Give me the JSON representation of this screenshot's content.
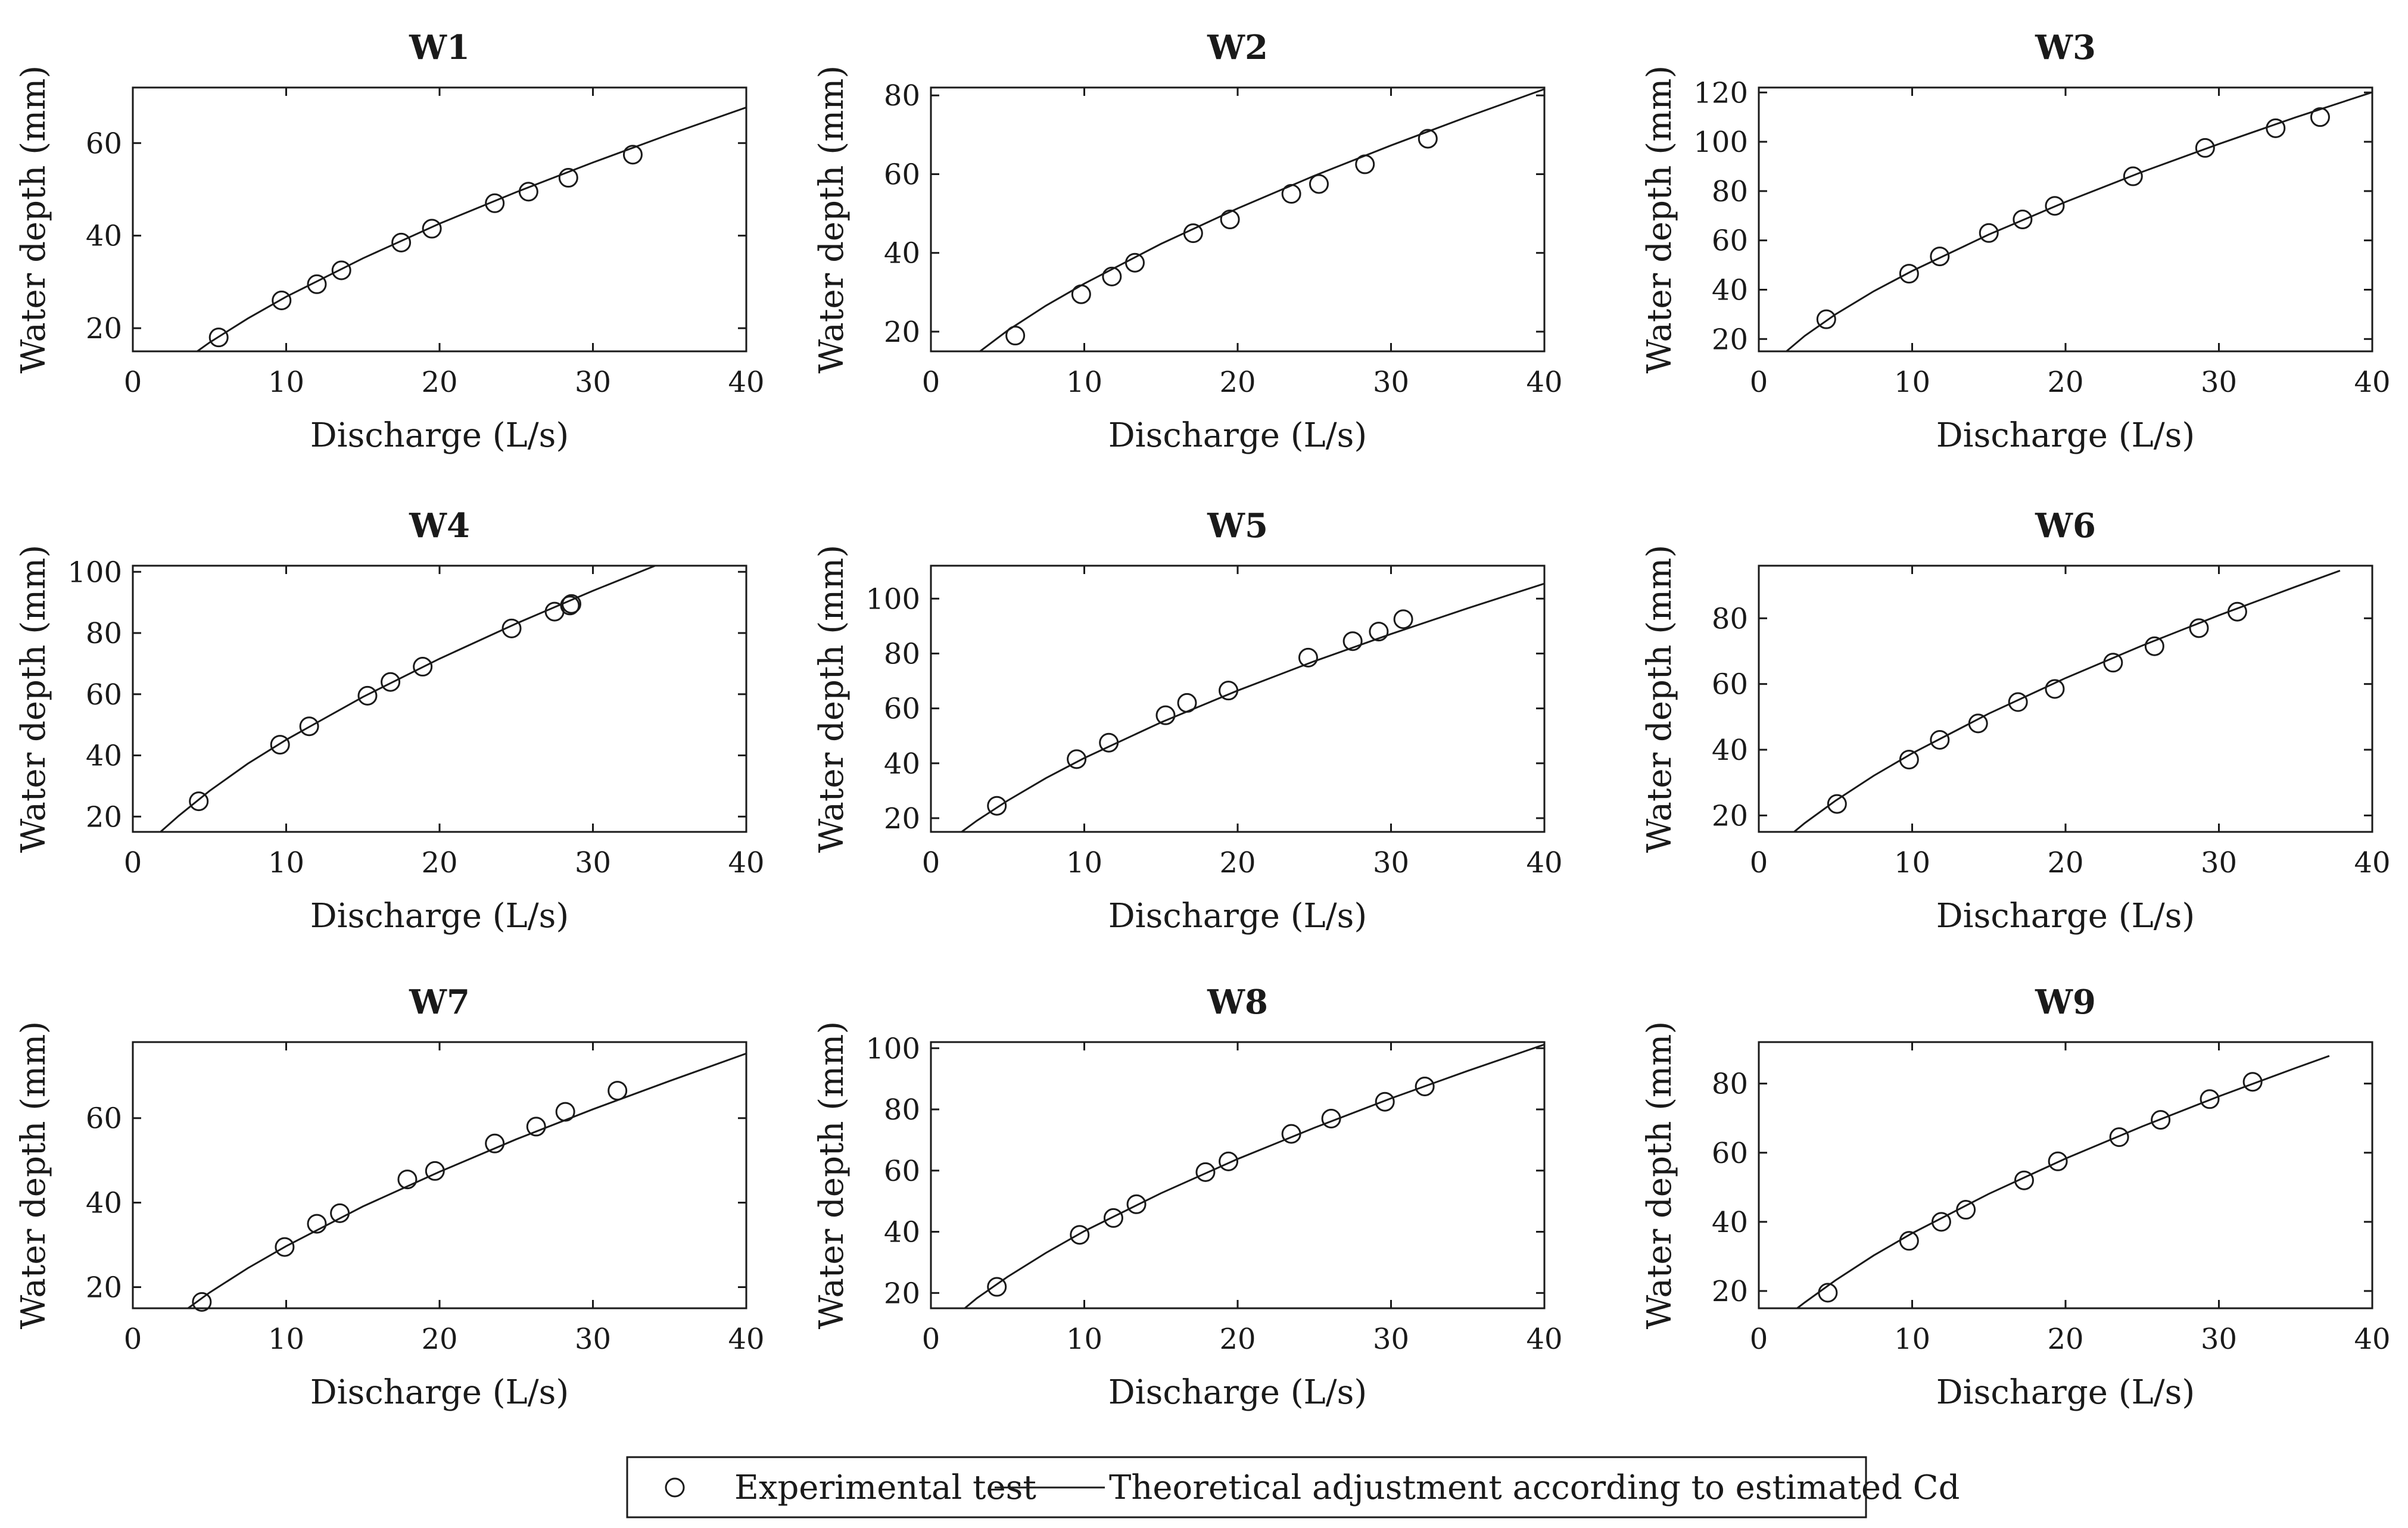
{
  "figure": {
    "legend": {
      "marker_label": "Experimental test",
      "line_label": "Theoretical adjustment according to estimated Cd",
      "placement": "bottom-center"
    },
    "colors": {
      "ink": "#1a1a1a",
      "background": "#ffffff"
    }
  },
  "chart_data": [
    {
      "type": "scatter",
      "title": "W1",
      "xlabel": "Discharge (L/s)",
      "ylabel": "Water depth (mm)",
      "xlim": [
        0,
        40
      ],
      "ylim": [
        15,
        72
      ],
      "xticks": [
        0,
        10,
        20,
        30,
        40
      ],
      "yticks": [
        20,
        40,
        60
      ],
      "grid": false,
      "series": [
        {
          "name": "Experimental test",
          "x": [
            5.6,
            9.7,
            12.0,
            13.6,
            17.5,
            19.5,
            23.6,
            25.8,
            28.4,
            32.6
          ],
          "y": [
            18,
            26,
            29.5,
            32.5,
            38.5,
            41.5,
            47,
            49.5,
            52.5,
            57.5
          ]
        },
        {
          "name": "Theoretical adjustment according to estimated Cd",
          "x": [
            4.2,
            5,
            7.5,
            10,
            15,
            20,
            25,
            30,
            35,
            40
          ],
          "y": [
            15,
            16.9,
            22.1,
            26.8,
            35.1,
            42.6,
            49.4,
            55.8,
            61.9,
            67.7
          ]
        }
      ]
    },
    {
      "type": "scatter",
      "title": "W2",
      "xlabel": "Discharge (L/s)",
      "ylabel": "Water depth (mm)",
      "xlim": [
        0,
        40
      ],
      "ylim": [
        15,
        82
      ],
      "xticks": [
        0,
        10,
        20,
        30,
        40
      ],
      "yticks": [
        20,
        40,
        60,
        80
      ],
      "grid": false,
      "series": [
        {
          "name": "Experimental test",
          "x": [
            5.5,
            9.8,
            11.8,
            13.3,
            17.1,
            19.5,
            23.5,
            25.3,
            28.3,
            32.4
          ],
          "y": [
            19,
            29.5,
            34,
            37.5,
            45,
            48.5,
            55,
            57.5,
            62.5,
            69
          ]
        },
        {
          "name": "Theoretical adjustment according to estimated Cd",
          "x": [
            3.2,
            5,
            7.5,
            10,
            15,
            20,
            25,
            30,
            35,
            40
          ],
          "y": [
            15,
            20.3,
            26.6,
            32.2,
            42.3,
            51.3,
            59.6,
            67.3,
            74.6,
            81.6
          ]
        }
      ]
    },
    {
      "type": "scatter",
      "title": "W3",
      "xlabel": "Discharge (L/s)",
      "ylabel": "Water depth (mm)",
      "xlim": [
        0,
        40
      ],
      "ylim": [
        15,
        122
      ],
      "xticks": [
        0,
        10,
        20,
        30,
        40
      ],
      "yticks": [
        20,
        40,
        60,
        80,
        100,
        120
      ],
      "grid": false,
      "series": [
        {
          "name": "Experimental test",
          "x": [
            4.4,
            9.8,
            11.8,
            15.0,
            17.2,
            19.3,
            24.4,
            29.1,
            33.7,
            36.6
          ],
          "y": [
            28,
            46.5,
            53.5,
            63,
            68.5,
            74,
            86,
            97.5,
            105.5,
            110
          ]
        },
        {
          "name": "Theoretical adjustment according to estimated Cd",
          "x": [
            1.8,
            3,
            5,
            7.5,
            10,
            15,
            20,
            25,
            30,
            35,
            40
          ],
          "y": [
            15,
            21.3,
            30,
            39.4,
            47.6,
            62.4,
            75.6,
            87.8,
            99.1,
            109.9,
            120.1
          ]
        }
      ]
    },
    {
      "type": "scatter",
      "title": "W4",
      "xlabel": "Discharge (L/s)",
      "ylabel": "Water depth (mm)",
      "xlim": [
        0,
        40
      ],
      "ylim": [
        15,
        102
      ],
      "xticks": [
        0,
        10,
        20,
        30,
        40
      ],
      "yticks": [
        20,
        40,
        60,
        80,
        100
      ],
      "grid": false,
      "series": [
        {
          "name": "Experimental test",
          "x": [
            4.3,
            9.6,
            11.5,
            15.3,
            16.8,
            18.9,
            24.7,
            27.5,
            28.5,
            28.6
          ],
          "y": [
            25,
            43.5,
            49.5,
            59.5,
            64,
            69,
            81.5,
            87,
            89,
            89.5
          ]
        },
        {
          "name": "Theoretical adjustment according to estimated Cd",
          "x": [
            1.8,
            3,
            5,
            7.5,
            10,
            15,
            20,
            25,
            30,
            35.2
          ],
          "y": [
            15,
            20.3,
            28.4,
            37.3,
            45.1,
            59.1,
            71.6,
            83.1,
            93.8,
            104.3
          ]
        }
      ]
    },
    {
      "type": "scatter",
      "title": "W5",
      "xlabel": "Discharge (L/s)",
      "ylabel": "Water depth (mm)",
      "xlim": [
        0,
        40
      ],
      "ylim": [
        15,
        112
      ],
      "xticks": [
        0,
        10,
        20,
        30,
        40
      ],
      "yticks": [
        20,
        40,
        60,
        80,
        100
      ],
      "grid": false,
      "series": [
        {
          "name": "Experimental test",
          "x": [
            4.3,
            9.5,
            11.6,
            15.3,
            16.7,
            19.4,
            24.6,
            27.5,
            29.2,
            30.8
          ],
          "y": [
            24.5,
            41.5,
            47.5,
            57.5,
            62,
            66.5,
            78.5,
            84.5,
            88,
            92.5
          ]
        },
        {
          "name": "Theoretical adjustment according to estimated Cd",
          "x": [
            2,
            3,
            5,
            7.5,
            10,
            15,
            20,
            25,
            30,
            35,
            40
          ],
          "y": [
            15,
            19.1,
            26.4,
            34.6,
            41.9,
            54.9,
            66.5,
            77.2,
            87.1,
            96.5,
            105.5
          ]
        }
      ]
    },
    {
      "type": "scatter",
      "title": "W6",
      "xlabel": "Discharge (L/s)",
      "ylabel": "Water depth (mm)",
      "xlim": [
        0,
        40
      ],
      "ylim": [
        15,
        96
      ],
      "xticks": [
        0,
        10,
        20,
        30,
        40
      ],
      "yticks": [
        20,
        40,
        60,
        80
      ],
      "grid": false,
      "series": [
        {
          "name": "Experimental test",
          "x": [
            5.1,
            9.8,
            11.8,
            14.3,
            16.9,
            19.3,
            23.1,
            25.8,
            28.7,
            31.2
          ],
          "y": [
            23.5,
            37,
            43,
            48,
            54.5,
            58.5,
            66.5,
            71.5,
            77,
            82
          ]
        },
        {
          "name": "Theoretical adjustment according to estimated Cd",
          "x": [
            2.3,
            3,
            5,
            7.5,
            10,
            15,
            20,
            25,
            30,
            35,
            37.9
          ],
          "y": [
            15,
            17.7,
            24.5,
            32.1,
            38.9,
            51,
            61.8,
            71.7,
            80.9,
            89.6,
            94.5
          ]
        }
      ]
    },
    {
      "type": "scatter",
      "title": "W7",
      "xlabel": "Discharge (L/s)",
      "ylabel": "Water depth (mm)",
      "xlim": [
        0,
        40
      ],
      "ylim": [
        15,
        78
      ],
      "xticks": [
        0,
        10,
        20,
        30,
        40
      ],
      "yticks": [
        20,
        40,
        60
      ],
      "grid": false,
      "series": [
        {
          "name": "Experimental test",
          "x": [
            4.5,
            9.9,
            12.0,
            13.5,
            17.9,
            19.7,
            23.6,
            26.3,
            28.2,
            31.6
          ],
          "y": [
            16.5,
            29.5,
            35,
            37.5,
            45.5,
            47.5,
            54,
            58,
            61.5,
            66.5
          ]
        },
        {
          "name": "Theoretical adjustment according to estimated Cd",
          "x": [
            3.6,
            5,
            7.5,
            10,
            15,
            20,
            25,
            30,
            35,
            40
          ],
          "y": [
            15,
            18.7,
            24.5,
            29.7,
            39.1,
            47.3,
            55,
            62.1,
            68.8,
            75.3
          ]
        }
      ]
    },
    {
      "type": "scatter",
      "title": "W8",
      "xlabel": "Discharge (L/s)",
      "ylabel": "Water depth (mm)",
      "xlim": [
        0,
        40
      ],
      "ylim": [
        15,
        102
      ],
      "xticks": [
        0,
        10,
        20,
        30,
        40
      ],
      "yticks": [
        20,
        40,
        60,
        80,
        100
      ],
      "grid": false,
      "series": [
        {
          "name": "Experimental test",
          "x": [
            4.3,
            9.7,
            11.9,
            13.4,
            17.9,
            19.4,
            23.5,
            26.1,
            29.6,
            32.2
          ],
          "y": [
            22,
            39,
            44.5,
            49,
            59.5,
            63,
            72,
            77,
            82.5,
            87.5
          ]
        },
        {
          "name": "Theoretical adjustment according to estimated Cd",
          "x": [
            2.2,
            3,
            5,
            7.5,
            10,
            15,
            20,
            25,
            30,
            35,
            40
          ],
          "y": [
            15,
            18.3,
            25.3,
            33.1,
            40.2,
            52.6,
            63.8,
            74,
            83.6,
            92.6,
            101.2
          ]
        }
      ]
    },
    {
      "type": "scatter",
      "title": "W9",
      "xlabel": "Discharge (L/s)",
      "ylabel": "Water depth (mm)",
      "xlim": [
        0,
        40
      ],
      "ylim": [
        15,
        92
      ],
      "xticks": [
        0,
        10,
        20,
        30,
        40
      ],
      "yticks": [
        20,
        40,
        60,
        80
      ],
      "grid": false,
      "series": [
        {
          "name": "Experimental test",
          "x": [
            4.5,
            9.8,
            11.9,
            13.5,
            17.3,
            19.5,
            23.5,
            26.2,
            29.4,
            32.2
          ],
          "y": [
            19.5,
            34.5,
            40,
            43.5,
            52,
            57.5,
            64.5,
            69.5,
            75.5,
            80.5
          ]
        },
        {
          "name": "Theoretical adjustment according to estimated Cd",
          "x": [
            2.5,
            3,
            5,
            7.5,
            10,
            15,
            20,
            25,
            30,
            35,
            37.2
          ],
          "y": [
            15,
            16.7,
            23.1,
            30.3,
            36.7,
            48.1,
            58.3,
            67.6,
            76.3,
            84.5,
            88
          ]
        }
      ]
    }
  ]
}
